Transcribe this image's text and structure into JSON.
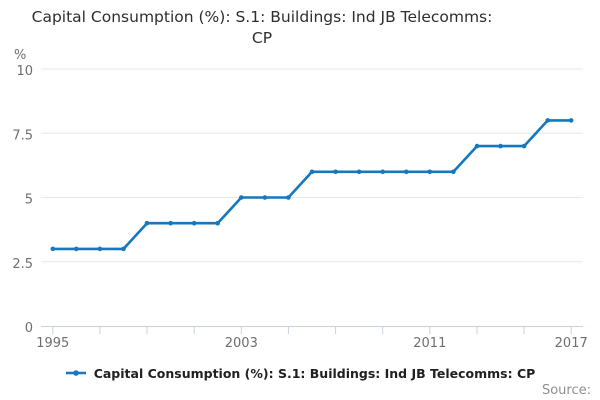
{
  "title": {
    "line1": "Capital Consumption (%): S.1: Buildings: Ind JB Telecomms:",
    "line2": "CP",
    "full": "Capital Consumption (%): S.1: Buildings: Ind JB Telecomms: CP"
  },
  "chart_data": {
    "type": "line",
    "title": "Capital Consumption (%): S.1: Buildings: Ind JB Telecomms: CP",
    "ylabel": "%",
    "categories": [
      1995,
      1996,
      1997,
      1998,
      1999,
      2000,
      2001,
      2002,
      2003,
      2004,
      2005,
      2006,
      2007,
      2008,
      2009,
      2010,
      2011,
      2012,
      2013,
      2014,
      2015,
      2016,
      2017
    ],
    "values": [
      3,
      3,
      3,
      3,
      4,
      4,
      4,
      4,
      5,
      5,
      5,
      6,
      6,
      6,
      6,
      6,
      6,
      6,
      7,
      7,
      7,
      8,
      8
    ],
    "series_name": "Capital Consumption (%): S.1: Buildings: Ind JB Telecomms: CP",
    "ylim": [
      0,
      10
    ],
    "yticks": [
      0,
      2.5,
      5,
      7.5,
      10
    ],
    "ytick_labels": [
      "0",
      "2.5",
      "5",
      "7.5",
      "10"
    ],
    "xticks": [
      1995,
      1997,
      1999,
      2001,
      2003,
      2005,
      2007,
      2009,
      2011,
      2013,
      2015,
      2017
    ],
    "xtick_labels": [
      "1995",
      "2003",
      "2011",
      "2017"
    ],
    "grid": true,
    "legend_position": "bottom",
    "marker": "circle"
  },
  "legend": {
    "label": "Capital Consumption (%): S.1: Buildings: Ind JB Telecomms: CP"
  },
  "source": {
    "label": "Source:"
  },
  "colors": {
    "line": "#1577be",
    "axis": "#c6d3df",
    "grid": "#e7e7e7",
    "tick_label": "#6e6e6e",
    "title_text": "#2e2e2e",
    "legend_text": "#202020",
    "source_text": "#8f8f8f",
    "background": "#ffffff"
  }
}
